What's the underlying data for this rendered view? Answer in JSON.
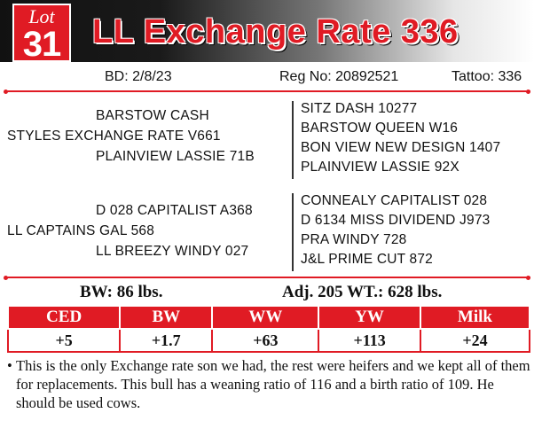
{
  "lot": {
    "word": "Lot",
    "number": "31"
  },
  "title": "LL Exchange Rate 336",
  "info": {
    "bd": "BD: 2/8/23",
    "reg": "Reg No: 20892521",
    "tattoo": "Tattoo: 336"
  },
  "sire_side": {
    "top": "BARSTOW CASH",
    "main": "STYLES EXCHANGE RATE V661",
    "bottom": "PLAINVIEW LASSIE 71B",
    "right": [
      "SITZ DASH 10277",
      "BARSTOW QUEEN W16",
      "BON VIEW NEW DESIGN 1407",
      "PLAINVIEW LASSIE 92X"
    ]
  },
  "dam_side": {
    "top": "D 028 CAPITALIST A368",
    "main": "LL CAPTAINS GAL 568",
    "bottom": "LL BREEZY WINDY 027",
    "right": [
      "CONNEALY CAPITALIST 028",
      "D 6134 MISS DIVIDEND J973",
      "PRA WINDY 728",
      "J&L PRIME CUT 872"
    ]
  },
  "measures": {
    "bw": "BW: 86 lbs.",
    "adj": "Adj. 205 WT.: 628 lbs."
  },
  "epd": {
    "headers": [
      "CED",
      "BW",
      "WW",
      "YW",
      "Milk"
    ],
    "values": [
      "+5",
      "+1.7",
      "+63",
      "+113",
      "+24"
    ]
  },
  "note": {
    "bullet": "•",
    "text": "This is the only Exchange rate son we had, the rest were heifers and we kept all of them for replacements. This bull has a weaning ratio of 116 and a birth ratio of 109. He should be used cows."
  },
  "colors": {
    "accent": "#e01b24",
    "banner_dark": "#111111"
  }
}
